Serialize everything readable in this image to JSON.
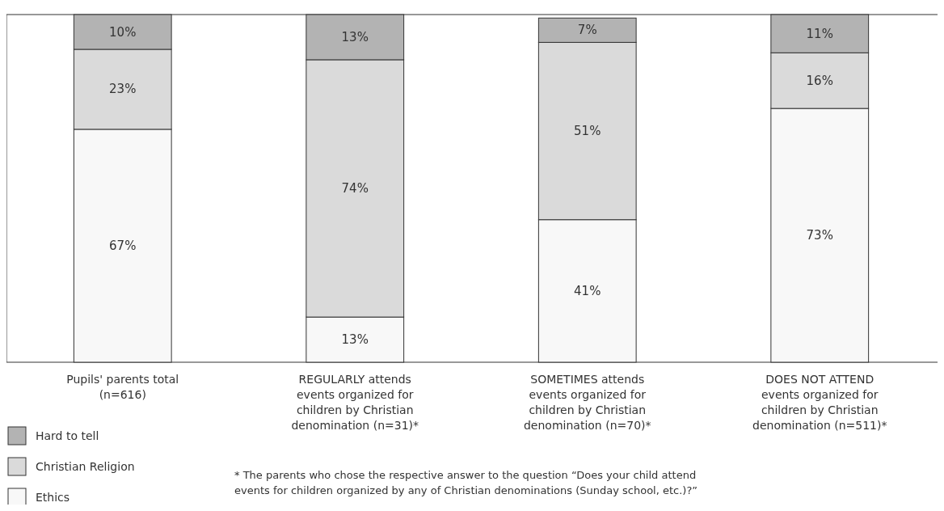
{
  "chart_data": {
    "type": "bar",
    "stacked": true,
    "categories": [
      "Pupils' parents total\n(n=616)",
      "REGULARLY attends\nevents organized for\nchildren by Christian\ndenomination (n=31)*",
      "SOMETIMES attends\nevents organized for\nchildren by Christian\ndenomination (n=70)*",
      "DOES NOT ATTEND\nevents organized for\nchildren by Christian\ndenomination (n=511)*"
    ],
    "series": [
      {
        "name": "Ethics",
        "color": "#f8f8f8",
        "values": [
          67,
          13,
          41,
          73
        ],
        "value_labels": [
          "67%",
          "13%",
          "41%",
          "73%"
        ]
      },
      {
        "name": "Christian Religion",
        "color": "#dadada",
        "values": [
          23,
          74,
          51,
          16
        ],
        "value_labels": [
          "23%",
          "74%",
          "51%",
          "16%"
        ]
      },
      {
        "name": "Hard to tell",
        "color": "#b3b3b3",
        "values": [
          10,
          13,
          7,
          11
        ],
        "value_labels": [
          "10%",
          "13%",
          "7%",
          "11%"
        ]
      }
    ],
    "ylim": [
      0,
      100
    ],
    "legend": "bottom left",
    "grid": false,
    "annotations": [
      "* The parents who chose the respective answer to the question “Does your child attend\nevents for children organized by any of Christian denominations (Sunday school, etc.)?”"
    ]
  }
}
